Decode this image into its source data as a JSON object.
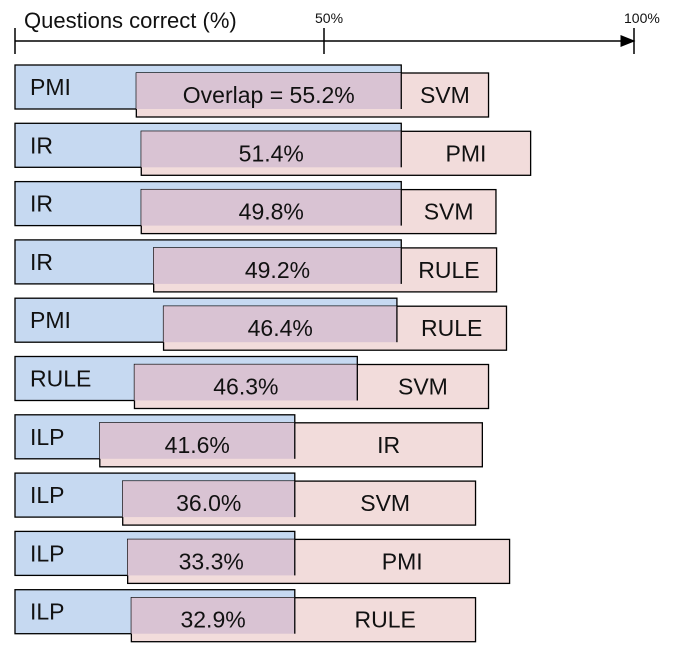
{
  "chart_data": {
    "type": "bar",
    "xlabel": "Questions correct (%)",
    "x_ticks": [
      "50%",
      "100%"
    ],
    "xlim": [
      0,
      100
    ],
    "colors": {
      "left_fill": "#c6d9f1",
      "right_fill": "#f2dcdb",
      "overlap_fill": "#d9c3d3",
      "stroke": "#000000"
    },
    "rows": [
      {
        "left": "PMI",
        "right": "SVM",
        "overlap_label": "Overlap = 55.2%",
        "overlap": 55.2,
        "left_pct": 62.4,
        "right_start": 19.6,
        "right_end": 76.5
      },
      {
        "left": "IR",
        "right": "PMI",
        "overlap_label": "51.4%",
        "overlap": 51.4,
        "left_pct": 62.4,
        "right_start": 20.4,
        "right_end": 83.3
      },
      {
        "left": "IR",
        "right": "SVM",
        "overlap_label": "49.8%",
        "overlap": 49.8,
        "left_pct": 62.4,
        "right_start": 20.4,
        "right_end": 77.7
      },
      {
        "left": "IR",
        "right": "RULE",
        "overlap_label": "49.2%",
        "overlap": 49.2,
        "left_pct": 62.4,
        "right_start": 22.4,
        "right_end": 77.8
      },
      {
        "left": "PMI",
        "right": "RULE",
        "overlap_label": "46.4%",
        "overlap": 46.4,
        "left_pct": 61.7,
        "right_start": 24.0,
        "right_end": 79.4
      },
      {
        "left": "RULE",
        "right": "SVM",
        "overlap_label": "46.3%",
        "overlap": 46.3,
        "left_pct": 55.3,
        "right_start": 19.3,
        "right_end": 76.5
      },
      {
        "left": "ILP",
        "right": "IR",
        "overlap_label": "41.6%",
        "overlap": 41.6,
        "left_pct": 45.2,
        "right_start": 13.7,
        "right_end": 75.5
      },
      {
        "left": "ILP",
        "right": "SVM",
        "overlap_label": "36.0%",
        "overlap": 36.0,
        "left_pct": 45.2,
        "right_start": 17.4,
        "right_end": 74.4
      },
      {
        "left": "ILP",
        "right": "PMI",
        "overlap_label": "33.3%",
        "overlap": 33.3,
        "left_pct": 45.2,
        "right_start": 18.2,
        "right_end": 79.9
      },
      {
        "left": "ILP",
        "right": "RULE",
        "overlap_label": "32.9%",
        "overlap": 32.9,
        "left_pct": 45.2,
        "right_start": 18.8,
        "right_end": 74.4
      }
    ]
  }
}
